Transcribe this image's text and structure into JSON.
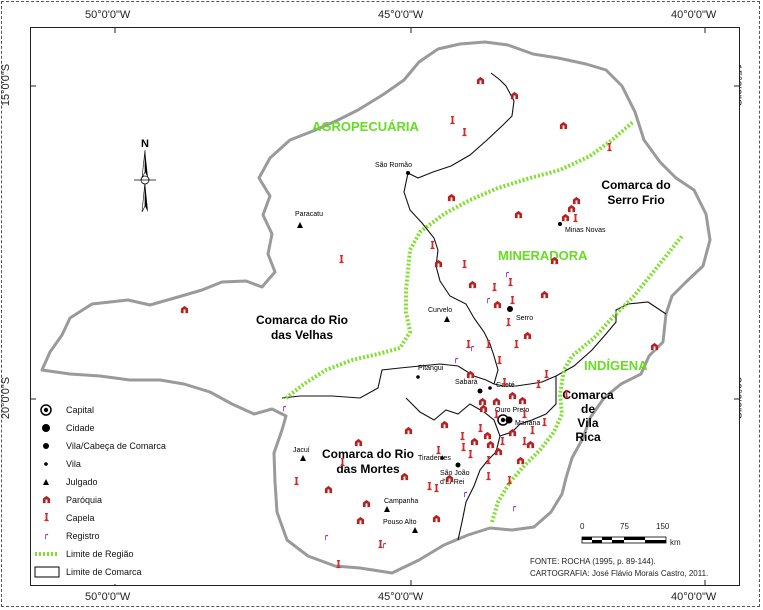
{
  "axes": {
    "lon_top": [
      "50°0'0\"W",
      "45°0'0\"W",
      "40°0'0\"W"
    ],
    "lon_bottom": [
      "50°0'0\"W",
      "45°0'0\"W",
      "40°0'0\"W"
    ],
    "lat_left": [
      "15°0'0\"S",
      "20°0'0\"S"
    ],
    "lat_right": [
      "15°0'0\"S",
      "20°0'0\"S"
    ]
  },
  "regions": {
    "agropecuaria": "AGROPECUÁRIA",
    "mineradora": "MINERADORA",
    "indigena": "INDÍGENA"
  },
  "comarcas": {
    "serro_frio": [
      "Comarca do",
      "Serro Frio"
    ],
    "rio_das_velhas": [
      "Comarca do Rio",
      "das Velhas"
    ],
    "rio_das_mortes": [
      "Comarca do Rio",
      "das Mortes"
    ],
    "vila_rica": [
      "Comarca",
      "de",
      "Vila",
      "Rica"
    ]
  },
  "places": {
    "sao_romao": "São Romão",
    "paracatu": "Paracatu",
    "minas_novas": "Minas Novas",
    "serro": "Serro",
    "curvelo": "Curvelo",
    "pitangui": "Pitangui",
    "sabara": "Sabará",
    "caete": "Caeté",
    "ouro_preto": "Ouro Preto",
    "mariana": "Mariana",
    "jacui": "Jacuí",
    "tiradentes": "Tiradentes",
    "sao_joao": [
      "São João",
      "d'El-Rei"
    ],
    "campanha": "Campanha",
    "pouso_alto": "Pouso Alto"
  },
  "north_arrow": "N",
  "scale": {
    "labels": [
      "0",
      "75",
      "150"
    ],
    "unit": "km"
  },
  "legend": [
    {
      "symbol": "capital",
      "label": "Capital"
    },
    {
      "symbol": "cidade",
      "label": "Cidade"
    },
    {
      "symbol": "vila-cabeca",
      "label": "Vila/Cabeça de Comarca"
    },
    {
      "symbol": "vila",
      "label": "Vila"
    },
    {
      "symbol": "julgado",
      "label": "Julgado"
    },
    {
      "symbol": "paroquia",
      "label": "Paróquia"
    },
    {
      "symbol": "capela",
      "label": "Capela"
    },
    {
      "symbol": "registro",
      "label": "Registro"
    },
    {
      "symbol": "limite-regiao",
      "label": "Limite de Região"
    },
    {
      "symbol": "limite-comarca",
      "label": "Limite de Comarca"
    }
  ],
  "source": {
    "fonte": "FONTE: ROCHA (1995, p. 89-144).",
    "cartografia": "CARTOGRAFIA: José Flávio Morais Castro, 2011."
  },
  "colors": {
    "region_line": "#7ee02a",
    "region_text": "#66dd22",
    "outer_border": "#9a9a9a",
    "paroquia": "#b52020",
    "capela": "#d42a2a",
    "registro": "#8a2bd0"
  }
}
